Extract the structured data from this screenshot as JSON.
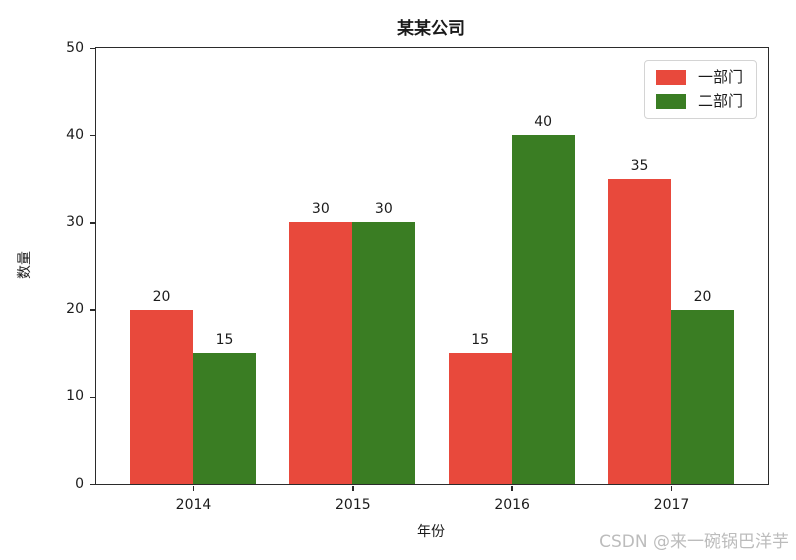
{
  "figure": {
    "watermark": "CSDN @来一碗锅巴洋芋"
  },
  "chart_data": {
    "type": "bar",
    "title": "某某公司",
    "xlabel": "年份",
    "ylabel": "数量",
    "categories": [
      "2014",
      "2015",
      "2016",
      "2017"
    ],
    "series": [
      {
        "name": "一部门",
        "color": "#e8493c",
        "values": [
          20,
          30,
          15,
          35
        ]
      },
      {
        "name": "二部门",
        "color": "#3a7d23",
        "values": [
          15,
          30,
          40,
          20
        ]
      }
    ],
    "ylim": [
      0,
      50
    ],
    "yticks": [
      0,
      10,
      20,
      30,
      40,
      50
    ],
    "bar_value_labels": true,
    "legend_position": "upper right",
    "grid": false,
    "background_color": "#ffffff",
    "spine_color": "#2b2b2b"
  }
}
